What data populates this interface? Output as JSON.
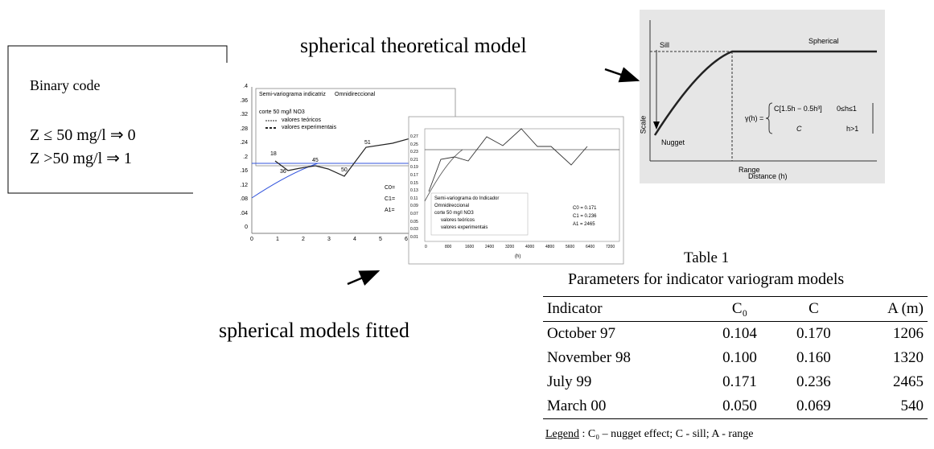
{
  "box": {
    "title": "Binary code",
    "rules": [
      "Z ≤ 50 mg/l ⇒ 0",
      "Z >50 mg/l ⇒ 1"
    ]
  },
  "captions": {
    "theoretical": "spherical theoretical model",
    "fitted": "spherical models fitted"
  },
  "theoretical_figure": {
    "sill": "Sill",
    "model": "Spherical",
    "nugget": "Nugget",
    "range": "Range",
    "y_label": "Scale",
    "x_label": "Distance (h)",
    "formula_lhs": "γ(h) =",
    "formula_case1": "C[1.5h − 0.5h³]",
    "formula_cond1": "0≤h≤1",
    "formula_case2": "C",
    "formula_cond2": "h>1"
  },
  "figure_a": {
    "title": "Semi-variograma indicatriz",
    "direction": "Omnidireccional",
    "cutoff": "corte 50 mg/l NO3",
    "legend": [
      "valores teóricos",
      "valores experimentais"
    ],
    "yticks": [
      ".4",
      ".36",
      ".32",
      ".28",
      ".24",
      ".2",
      ".16",
      ".12",
      ".08",
      ".04",
      "0"
    ],
    "xticks": [
      "0",
      "1",
      "2",
      "3",
      "4",
      "5",
      "6"
    ],
    "params": [
      "C0=",
      "C1=",
      "A1="
    ],
    "point_labels": [
      "18",
      "36",
      "45",
      "50",
      "51"
    ]
  },
  "figure_b": {
    "title": "Semi-variograma do Indicador",
    "direction": "Omnidireccional",
    "cutoff": "corte 50 mg/l NO3",
    "legend": [
      "valores teóricos",
      "valores experimentais"
    ],
    "yticks": [
      "0.27",
      "0.25",
      "0.23",
      "0.21",
      "0.19",
      "0.17",
      "0.15",
      "0.13",
      "0.11",
      "0.09",
      "0.07",
      "0.05",
      "0.03",
      "0.01"
    ],
    "xticks": [
      "0",
      "800",
      "1600",
      "2400",
      "3200",
      "4000",
      "4800",
      "5600",
      "6400",
      "7200"
    ],
    "x_label": "(h)",
    "params": [
      "C0 = 0.171",
      "C1 = 0.236",
      "A1 = 2465"
    ]
  },
  "table": {
    "caption": "Table 1",
    "title": "Parameters for indicator variogram models",
    "header": [
      "Indicator",
      "C₀",
      "C",
      "A (m)"
    ],
    "rows": [
      [
        "October 97",
        "0.104",
        "0.170",
        "1206"
      ],
      [
        "November 98",
        "0.100",
        "0.160",
        "1320"
      ],
      [
        "July 99",
        "0.171",
        "0.236",
        "2465"
      ],
      [
        "March 00",
        "0.050",
        "0.069",
        "540"
      ]
    ]
  },
  "legend": {
    "label": "Legend",
    "text": ": C₀ – nugget effect; C - sill; A - range"
  }
}
